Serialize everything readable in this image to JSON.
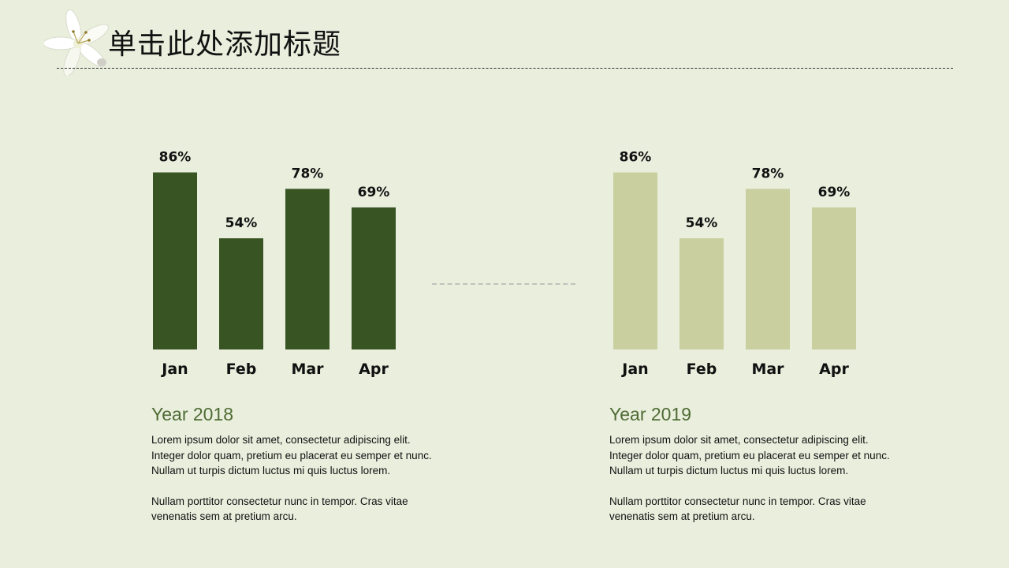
{
  "slide": {
    "title": "单击此处添加标题"
  },
  "chart_data": [
    {
      "type": "bar",
      "categories": [
        "Jan",
        "Feb",
        "Mar",
        "Apr"
      ],
      "values": [
        86,
        54,
        78,
        69
      ],
      "data_labels": [
        "86%",
        "54%",
        "78%",
        "69%"
      ],
      "ylim": [
        0,
        100
      ],
      "grid": false,
      "color": "#385423"
    },
    {
      "type": "bar",
      "categories": [
        "Jan",
        "Feb",
        "Mar",
        "Apr"
      ],
      "values": [
        86,
        54,
        78,
        69
      ],
      "data_labels": [
        "86%",
        "54%",
        "78%",
        "69%"
      ],
      "ylim": [
        0,
        100
      ],
      "grid": false,
      "color": "#C9CF9F"
    }
  ],
  "panels": [
    {
      "year": "Year 2018",
      "para1": "Lorem ipsum dolor sit amet, consectetur adipiscing elit.\nInteger dolor quam, pretium eu placerat eu semper et nunc.\nNullam ut turpis dictum luctus mi quis luctus lorem.",
      "para2": " Nullam porttitor consectetur nunc in tempor. Cras vitae\nvenenatis sem at pretium arcu."
    },
    {
      "year": "Year 2019",
      "para1": "Lorem ipsum dolor sit amet, consectetur adipiscing elit.\nInteger dolor quam, pretium eu placerat eu semper et nunc.\nNullam ut turpis dictum luctus mi quis luctus lorem.",
      "para2": " Nullam porttitor consectetur nunc in tempor. Cras vitae\nvenenatis sem at pretium arcu."
    }
  ],
  "colors": {
    "background": "#EAEEDD",
    "accent": "#4E6B34"
  },
  "icons": {
    "decoration": "lily-flower-icon"
  }
}
